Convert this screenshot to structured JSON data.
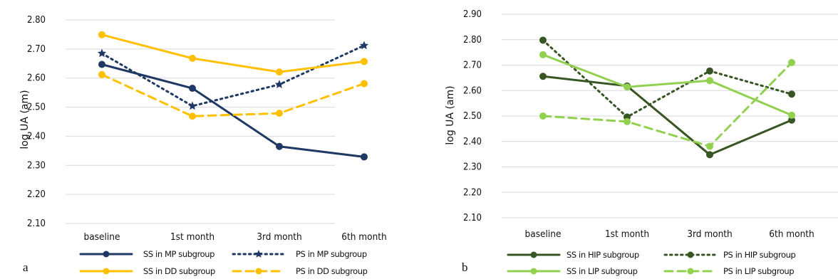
{
  "chart_data": [
    {
      "type": "line",
      "panel_label": "a",
      "ylabel": "log UA (am)",
      "categories": [
        "baseline",
        "1st month",
        "3rd month",
        "6th month"
      ],
      "ylim": [
        2.1,
        2.8
      ],
      "yticks": [
        "2.10",
        "2.20",
        "2.30",
        "2.40",
        "2.50",
        "2.60",
        "2.70",
        "2.80"
      ],
      "grid": "horizontal",
      "legend_position": "bottom",
      "series": [
        {
          "name": "SS in MP subgroup",
          "values": [
            2.647,
            2.565,
            2.365,
            2.329
          ],
          "color": "#1f3864",
          "dash": "solid",
          "marker": "circle"
        },
        {
          "name": "PS in MP subgroup",
          "values": [
            2.685,
            2.504,
            2.578,
            2.712
          ],
          "color": "#1f3864",
          "dash": "dotted",
          "marker": "star"
        },
        {
          "name": "SS in DD subgroup",
          "values": [
            2.749,
            2.668,
            2.621,
            2.657
          ],
          "color": "#ffc000",
          "dash": "solid",
          "marker": "circle"
        },
        {
          "name": "PS in DD subgroup",
          "values": [
            2.612,
            2.469,
            2.479,
            2.581
          ],
          "color": "#ffc000",
          "dash": "dashed",
          "marker": "circle"
        }
      ]
    },
    {
      "type": "line",
      "panel_label": "b",
      "ylabel": "log UA (am)",
      "categories": [
        "baseline",
        "1st month",
        "3rd month",
        "6th month"
      ],
      "ylim": [
        2.1,
        2.9
      ],
      "yticks": [
        "2.10",
        "2.20",
        "2.30",
        "2.40",
        "2.50",
        "2.60",
        "2.70",
        "2.80",
        "2.90"
      ],
      "grid": "horizontal",
      "legend_position": "bottom",
      "series": [
        {
          "name": "SS in HIP subgroup",
          "values": [
            2.656,
            2.618,
            2.348,
            2.484
          ],
          "color": "#375623",
          "dash": "solid",
          "marker": "circle"
        },
        {
          "name": "PS in HIP subgroup",
          "values": [
            2.798,
            2.496,
            2.677,
            2.586
          ],
          "color": "#375623",
          "dash": "dotted",
          "marker": "circle"
        },
        {
          "name": "SS in LIP subgroup",
          "values": [
            2.741,
            2.614,
            2.639,
            2.503
          ],
          "color": "#92d050",
          "dash": "solid",
          "marker": "circle"
        },
        {
          "name": "PS in LIP subgroup",
          "values": [
            2.5,
            2.478,
            2.381,
            2.71
          ],
          "color": "#92d050",
          "dash": "dashed",
          "marker": "circle"
        }
      ]
    }
  ]
}
